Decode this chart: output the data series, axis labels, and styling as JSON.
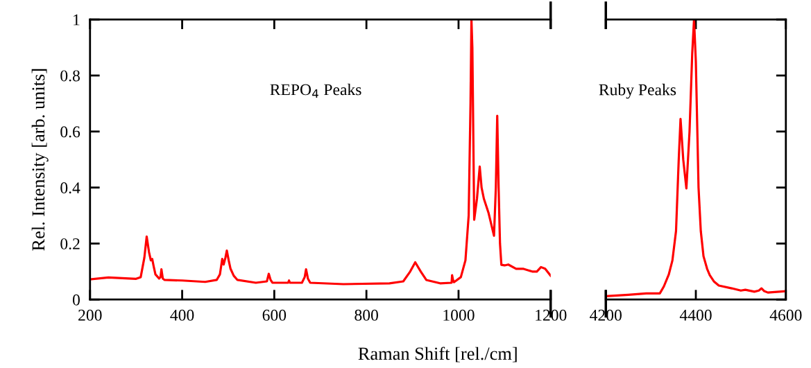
{
  "chart_data": [
    {
      "type": "line",
      "xlabel": "Raman Shift [rel./cm]",
      "ylabel": "Rel. Intensity [arb. units]",
      "annotations": [
        "REPO$_{4}$ Peaks"
      ],
      "xlim": [
        200,
        1200
      ],
      "xticks": [
        200,
        400,
        600,
        800,
        1000,
        1200
      ],
      "ylim": [
        0,
        1
      ],
      "yticks": [
        0,
        0.2,
        0.4,
        0.6,
        0.8,
        1
      ],
      "series": [
        {
          "color": "#ff0000",
          "x": [
            200,
            240,
            300,
            310,
            318,
            323,
            328,
            332,
            335,
            338,
            342,
            350,
            353,
            355,
            358,
            362,
            400,
            450,
            475,
            482,
            487,
            490,
            494,
            497,
            501,
            505,
            512,
            520,
            560,
            584,
            588,
            592,
            596,
            630,
            632,
            634,
            660,
            666,
            669,
            673,
            678,
            750,
            850,
            880,
            895,
            906,
            918,
            930,
            960,
            985,
            986,
            988,
            990,
            1005,
            1015,
            1022,
            1026,
            1028,
            1030,
            1034,
            1040,
            1046,
            1050,
            1055,
            1065,
            1077,
            1081,
            1084,
            1087,
            1090,
            1093,
            1100,
            1108,
            1125,
            1140,
            1160,
            1170,
            1179,
            1188,
            1200
          ],
          "values": [
            0.072,
            0.079,
            0.074,
            0.08,
            0.15,
            0.225,
            0.17,
            0.14,
            0.145,
            0.12,
            0.09,
            0.075,
            0.08,
            0.108,
            0.075,
            0.07,
            0.068,
            0.063,
            0.07,
            0.09,
            0.145,
            0.125,
            0.15,
            0.175,
            0.14,
            0.11,
            0.085,
            0.07,
            0.06,
            0.065,
            0.092,
            0.07,
            0.06,
            0.06,
            0.068,
            0.06,
            0.06,
            0.08,
            0.108,
            0.075,
            0.06,
            0.055,
            0.058,
            0.065,
            0.1,
            0.133,
            0.1,
            0.07,
            0.058,
            0.06,
            0.087,
            0.07,
            0.062,
            0.08,
            0.14,
            0.3,
            0.7,
            1.0,
            0.9,
            0.285,
            0.36,
            0.475,
            0.4,
            0.36,
            0.31,
            0.228,
            0.4,
            0.656,
            0.4,
            0.2,
            0.124,
            0.122,
            0.125,
            0.11,
            0.11,
            0.1,
            0.1,
            0.116,
            0.11,
            0.085
          ]
        }
      ]
    },
    {
      "type": "line",
      "annotations": [
        "Ruby Peaks"
      ],
      "tick_labels": "x",
      "xlim": [
        4200,
        4600
      ],
      "xticks": [
        4200,
        4400,
        4600
      ],
      "ylim": [
        0,
        1
      ],
      "yticks": [
        0,
        0.2,
        0.4,
        0.6,
        0.8,
        1
      ],
      "series": [
        {
          "color": "#ff0000",
          "x": [
            4200,
            4250,
            4290,
            4320,
            4329,
            4340,
            4348,
            4356,
            4362,
            4366,
            4372,
            4379,
            4386,
            4392,
            4396,
            4400,
            4406,
            4411,
            4417,
            4425,
            4431,
            4440,
            4451,
            4480,
            4500,
            4510,
            4530,
            4540,
            4546,
            4552,
            4560,
            4600
          ],
          "values": [
            0.012,
            0.017,
            0.022,
            0.022,
            0.047,
            0.09,
            0.14,
            0.245,
            0.5,
            0.645,
            0.5,
            0.397,
            0.6,
            0.88,
            1.0,
            0.85,
            0.4,
            0.245,
            0.155,
            0.11,
            0.087,
            0.065,
            0.05,
            0.04,
            0.032,
            0.035,
            0.028,
            0.032,
            0.04,
            0.03,
            0.025,
            0.03
          ]
        }
      ]
    }
  ]
}
